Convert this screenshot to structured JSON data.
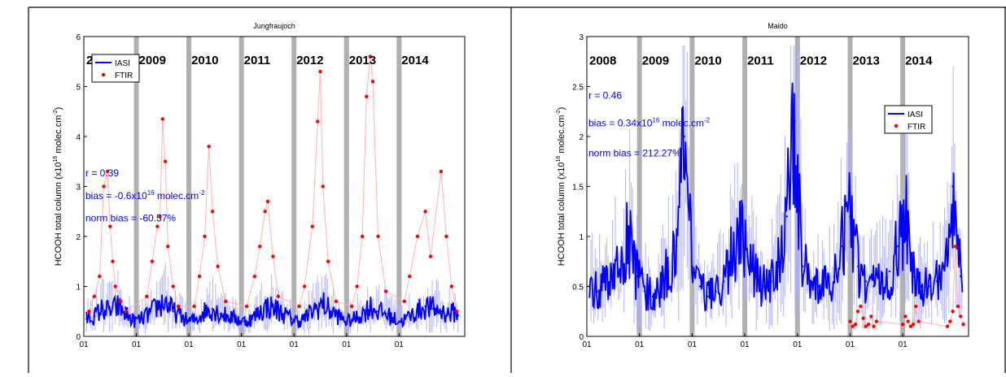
{
  "colors": {
    "iasi": "#0000ff",
    "iasi_light": "#b3b3ff",
    "ftir": "#ff0000",
    "ftir_light": "#ffb3b3",
    "year_bar": "#b0b0b0"
  },
  "chart_data": [
    {
      "type": "line",
      "title": "Jungfraujoch",
      "ylabel": "HCOOH total column (x10",
      "ylabel_sup": "16",
      "ylabel_tail": " molec.cm",
      "ylabel_sup2": "-2",
      "ylabel_end": ")",
      "xlim": [
        2008.0,
        2015.25
      ],
      "ylim": [
        0,
        6
      ],
      "yticks": [
        "0",
        "1",
        "2",
        "3",
        "4",
        "5",
        "6"
      ],
      "xticks": [
        {
          "x": 2008.0,
          "label": "01"
        },
        {
          "x": 2009.0,
          "label": "01"
        },
        {
          "x": 2010.0,
          "label": "01"
        },
        {
          "x": 2011.0,
          "label": "01"
        },
        {
          "x": 2012.0,
          "label": "01"
        },
        {
          "x": 2013.0,
          "label": "01"
        },
        {
          "x": 2014.0,
          "label": "01"
        }
      ],
      "year_labels": [
        {
          "x": 2008.0,
          "label": "2008"
        },
        {
          "x": 2009.0,
          "label": "2009"
        },
        {
          "x": 2010.0,
          "label": "2010"
        },
        {
          "x": 2011.0,
          "label": "2011"
        },
        {
          "x": 2012.0,
          "label": "2012"
        },
        {
          "x": 2013.0,
          "label": "2013"
        },
        {
          "x": 2014.0,
          "label": "2014"
        }
      ],
      "year_label_y": 5.45,
      "year_bars": [
        2009.0,
        2010.0,
        2011.0,
        2012.0,
        2013.0,
        2014.0
      ],
      "legend": {
        "position": "top-left",
        "entries": [
          "IASI",
          "FTIR"
        ]
      },
      "stats": [
        "r = 0.39",
        "bias = -0.6x10",
        "norm bias = -60.57%"
      ],
      "stats_bias_sup": "16",
      "stats_bias_tail": " molec.cm",
      "stats_bias_sup2": "-2",
      "stats_y": [
        3.2,
        2.75,
        2.3
      ],
      "series": [
        {
          "name": "IASI",
          "style": "line",
          "x": [
            2008.05,
            2008.2,
            2008.35,
            2008.5,
            2008.65,
            2008.8,
            2008.95,
            2009.1,
            2009.25,
            2009.4,
            2009.55,
            2009.7,
            2009.85,
            2010.0,
            2010.15,
            2010.3,
            2010.45,
            2010.6,
            2010.75,
            2010.9,
            2011.05,
            2011.2,
            2011.35,
            2011.5,
            2011.65,
            2011.8,
            2011.95,
            2012.1,
            2012.25,
            2012.4,
            2012.55,
            2012.7,
            2012.85,
            2013.0,
            2013.15,
            2013.3,
            2013.45,
            2013.6,
            2013.75,
            2013.9,
            2014.05,
            2014.2,
            2014.35,
            2014.5,
            2014.65,
            2014.8,
            2014.95,
            2015.1
          ],
          "y": [
            0.35,
            0.4,
            0.55,
            0.5,
            0.6,
            0.45,
            0.3,
            0.35,
            0.45,
            0.6,
            0.7,
            0.5,
            0.4,
            0.3,
            0.35,
            0.5,
            0.55,
            0.45,
            0.4,
            0.35,
            0.3,
            0.35,
            0.5,
            0.6,
            0.55,
            0.45,
            0.35,
            0.3,
            0.4,
            0.55,
            0.65,
            0.5,
            0.4,
            0.3,
            0.35,
            0.45,
            0.6,
            0.5,
            0.45,
            0.35,
            0.3,
            0.4,
            0.5,
            0.6,
            0.55,
            0.5,
            0.45,
            0.5
          ]
        },
        {
          "name": "FTIR",
          "style": "dots",
          "x": [
            2008.1,
            2008.2,
            2008.3,
            2008.38,
            2008.45,
            2008.5,
            2008.55,
            2008.6,
            2008.7,
            2008.8,
            2009.2,
            2009.3,
            2009.4,
            2009.45,
            2009.5,
            2009.55,
            2009.6,
            2009.7,
            2009.8,
            2010.1,
            2010.2,
            2010.3,
            2010.38,
            2010.45,
            2010.55,
            2010.7,
            2011.1,
            2011.25,
            2011.35,
            2011.45,
            2011.5,
            2011.6,
            2011.7,
            2012.1,
            2012.2,
            2012.35,
            2012.45,
            2012.5,
            2012.55,
            2012.65,
            2012.8,
            2013.1,
            2013.2,
            2013.3,
            2013.38,
            2013.45,
            2013.5,
            2013.6,
            2013.75,
            2014.1,
            2014.2,
            2014.35,
            2014.5,
            2014.6,
            2014.8,
            2014.9,
            2015.0,
            2015.1
          ],
          "y": [
            0.5,
            0.8,
            1.2,
            3.0,
            3.3,
            2.2,
            1.5,
            1.0,
            0.7,
            0.5,
            0.8,
            1.5,
            2.2,
            2.4,
            4.35,
            3.5,
            1.8,
            1.0,
            0.6,
            0.6,
            1.2,
            2.0,
            3.8,
            2.5,
            1.4,
            0.7,
            0.6,
            1.2,
            1.8,
            2.5,
            2.7,
            1.6,
            0.8,
            0.6,
            1.0,
            2.2,
            4.3,
            5.3,
            3.0,
            1.5,
            0.7,
            0.6,
            1.0,
            2.0,
            4.8,
            5.6,
            5.1,
            2.0,
            0.9,
            0.7,
            1.2,
            2.0,
            2.5,
            1.6,
            3.3,
            2.0,
            1.0,
            0.5
          ]
        }
      ]
    },
    {
      "type": "line",
      "title": "Maido",
      "ylabel": "HCOOH total column (x10",
      "ylabel_sup": "16",
      "ylabel_tail": " molec.cm",
      "ylabel_sup2": "-2",
      "ylabel_end": ")",
      "xlim": [
        2008.0,
        2015.25
      ],
      "ylim": [
        0,
        3
      ],
      "yticks": [
        "0",
        "0.5",
        "1",
        "1.5",
        "2",
        "2.5",
        "3"
      ],
      "ytick_values": [
        0,
        0.5,
        1,
        1.5,
        2,
        2.5,
        3
      ],
      "xticks": [
        {
          "x": 2008.0,
          "label": "01"
        },
        {
          "x": 2009.0,
          "label": "01"
        },
        {
          "x": 2010.0,
          "label": "01"
        },
        {
          "x": 2011.0,
          "label": "01"
        },
        {
          "x": 2012.0,
          "label": "01"
        },
        {
          "x": 2013.0,
          "label": "01"
        },
        {
          "x": 2014.0,
          "label": "01"
        }
      ],
      "year_labels": [
        {
          "x": 2008.0,
          "label": "2008"
        },
        {
          "x": 2009.0,
          "label": "2009"
        },
        {
          "x": 2010.0,
          "label": "2010"
        },
        {
          "x": 2011.0,
          "label": "2011"
        },
        {
          "x": 2012.0,
          "label": "2012"
        },
        {
          "x": 2013.0,
          "label": "2013"
        },
        {
          "x": 2014.0,
          "label": "2014"
        }
      ],
      "year_label_y": 2.72,
      "year_bars": [
        2009.0,
        2010.0,
        2011.0,
        2012.0,
        2013.0,
        2014.0
      ],
      "legend": {
        "position": "right",
        "entries": [
          "IASI",
          "FTIR"
        ]
      },
      "stats": [
        "r = 0.46",
        "bias = 0.34x10",
        "norm bias = 212.27%"
      ],
      "stats_bias_sup": "16",
      "stats_bias_tail": " molec.cm",
      "stats_bias_sup2": "-2",
      "stats_y": [
        2.38,
        2.1,
        1.8
      ],
      "series": [
        {
          "name": "IASI",
          "style": "line",
          "x": [
            2008.05,
            2008.2,
            2008.35,
            2008.5,
            2008.65,
            2008.8,
            2008.95,
            2009.1,
            2009.25,
            2009.4,
            2009.55,
            2009.7,
            2009.85,
            2010.0,
            2010.15,
            2010.3,
            2010.45,
            2010.6,
            2010.75,
            2010.9,
            2011.05,
            2011.2,
            2011.35,
            2011.5,
            2011.65,
            2011.8,
            2011.95,
            2012.1,
            2012.25,
            2012.4,
            2012.55,
            2012.7,
            2012.85,
            2013.0,
            2013.15,
            2013.3,
            2013.45,
            2013.6,
            2013.75,
            2013.9,
            2014.05,
            2014.2,
            2014.35,
            2014.5,
            2014.65,
            2014.8,
            2014.95,
            2015.1
          ],
          "y": [
            0.5,
            0.45,
            0.55,
            0.6,
            0.75,
            1.0,
            0.6,
            0.45,
            0.4,
            0.5,
            0.65,
            0.9,
            2.0,
            0.7,
            0.5,
            0.4,
            0.45,
            0.55,
            0.8,
            1.1,
            0.8,
            0.6,
            0.5,
            0.55,
            0.7,
            1.2,
            2.15,
            0.7,
            0.55,
            0.5,
            0.5,
            0.6,
            0.9,
            1.2,
            0.7,
            0.55,
            0.5,
            0.55,
            0.65,
            0.9,
            1.2,
            0.6,
            0.5,
            0.5,
            0.55,
            0.7,
            1.5,
            0.6
          ]
        },
        {
          "name": "FTIR",
          "style": "dots",
          "x": [
            2013.0,
            2013.05,
            2013.1,
            2013.15,
            2013.2,
            2013.25,
            2013.3,
            2013.35,
            2013.4,
            2013.45,
            2013.5,
            2014.0,
            2014.05,
            2014.1,
            2014.15,
            2014.2,
            2014.25,
            2014.3,
            2014.85,
            2014.9,
            2014.95,
            2015.0,
            2015.05,
            2015.1,
            2015.15
          ],
          "y": [
            0.15,
            0.1,
            0.12,
            0.25,
            0.3,
            0.18,
            0.1,
            0.12,
            0.2,
            0.1,
            0.15,
            0.12,
            0.2,
            0.15,
            0.1,
            0.12,
            0.3,
            0.15,
            0.1,
            0.15,
            0.25,
            0.9,
            0.3,
            0.2,
            0.12
          ]
        }
      ]
    }
  ]
}
